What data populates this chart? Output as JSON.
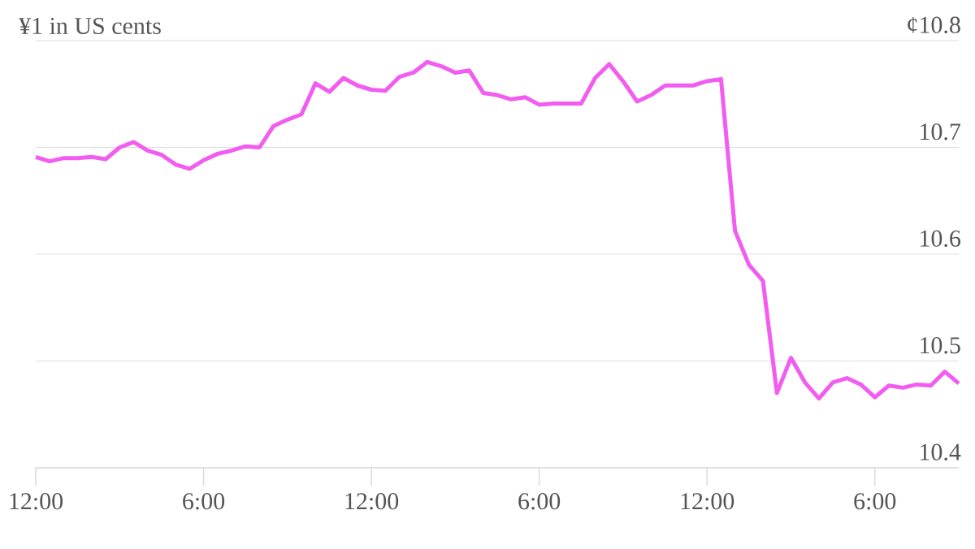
{
  "chart_data": {
    "type": "line",
    "title": "¥1 in US cents",
    "color": "#f25cf0",
    "categories": [
      "12:00",
      null,
      null,
      null,
      null,
      null,
      null,
      null,
      null,
      null,
      null,
      null,
      "6:00",
      null,
      null,
      null,
      null,
      null,
      null,
      null,
      null,
      null,
      null,
      null,
      "12:00",
      null,
      null,
      null,
      null,
      null,
      null,
      null,
      null,
      null,
      null,
      null,
      "6:00",
      null,
      null,
      null,
      null,
      null,
      null,
      null,
      null,
      null,
      null,
      null,
      "12:00",
      null,
      null,
      null,
      null,
      null,
      null,
      null,
      null,
      null,
      null,
      null,
      "6:00",
      null,
      null,
      null,
      null,
      null,
      null
    ],
    "values": [
      10.691,
      10.687,
      10.69,
      10.69,
      10.691,
      10.689,
      10.7,
      10.705,
      10.697,
      10.693,
      10.684,
      10.68,
      10.688,
      10.694,
      10.697,
      10.701,
      10.7,
      10.72,
      10.726,
      10.731,
      10.76,
      10.752,
      10.765,
      10.758,
      10.754,
      10.753,
      10.766,
      10.77,
      10.78,
      10.776,
      10.77,
      10.772,
      10.751,
      10.749,
      10.745,
      10.747,
      10.74,
      10.741,
      10.741,
      10.741,
      10.765,
      10.778,
      10.762,
      10.743,
      10.749,
      10.758,
      10.758,
      10.758,
      10.762,
      10.764,
      10.622,
      10.59,
      10.575,
      10.47,
      10.503,
      10.48,
      10.465,
      10.48,
      10.484,
      10.478,
      10.466,
      10.477,
      10.475,
      10.478,
      10.477,
      10.49,
      10.479
    ],
    "ylim": [
      10.4,
      10.8
    ],
    "yticks": [
      {
        "value": 10.4,
        "label": "10.4"
      },
      {
        "value": 10.5,
        "label": "10.5"
      },
      {
        "value": 10.6,
        "label": "10.6"
      },
      {
        "value": 10.7,
        "label": "10.7"
      },
      {
        "value": 10.8,
        "label": "¢10.8"
      }
    ],
    "grid": "y"
  }
}
